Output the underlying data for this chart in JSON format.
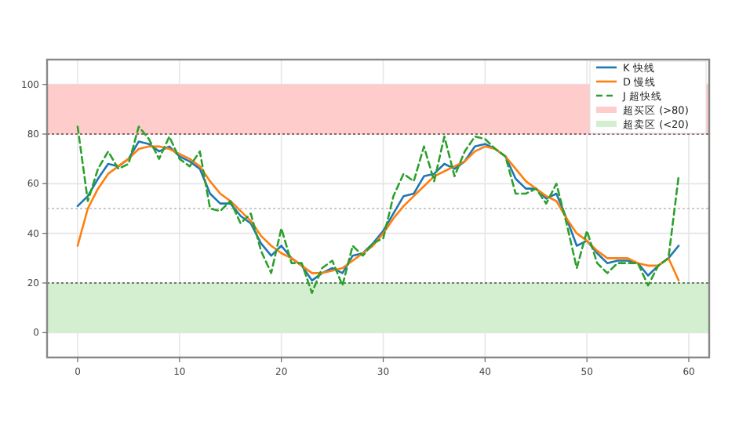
{
  "chart_data": {
    "type": "line",
    "x": [
      0,
      1,
      2,
      3,
      4,
      5,
      6,
      7,
      8,
      9,
      10,
      11,
      12,
      13,
      14,
      15,
      16,
      17,
      18,
      19,
      20,
      21,
      22,
      23,
      24,
      25,
      26,
      27,
      28,
      29,
      30,
      31,
      32,
      33,
      34,
      35,
      36,
      37,
      38,
      39,
      40,
      41,
      42,
      43,
      44,
      45,
      46,
      47,
      48,
      49,
      50,
      51,
      52,
      53,
      54,
      55,
      56,
      57,
      58,
      59
    ],
    "series": [
      {
        "name": "K 快线",
        "color": "#1f77b4",
        "line_style": "solid",
        "values": [
          51,
          55,
          62,
          68,
          67,
          70,
          77,
          76,
          73,
          75,
          71,
          69,
          66,
          56,
          52,
          52,
          47,
          44,
          36,
          31,
          35,
          30,
          27,
          21,
          24,
          26,
          24,
          31,
          32,
          36,
          41,
          48,
          55,
          56,
          63,
          64,
          68,
          66,
          69,
          75,
          76,
          74,
          71,
          62,
          58,
          58,
          54,
          56,
          46,
          35,
          37,
          32,
          28,
          29,
          29,
          28,
          23,
          27,
          30,
          35
        ]
      },
      {
        "name": "D 慢线",
        "color": "#ff7f0e",
        "line_style": "solid",
        "values": [
          35,
          50,
          58,
          64,
          67,
          70,
          74,
          75,
          75,
          74,
          72,
          70,
          67,
          61,
          56,
          53,
          49,
          45,
          39,
          35,
          32,
          30,
          27,
          24,
          24,
          25,
          26,
          29,
          32,
          35,
          40,
          46,
          51,
          55,
          59,
          63,
          65,
          67,
          69,
          73,
          75,
          74,
          71,
          66,
          61,
          58,
          55,
          53,
          46,
          40,
          37,
          33,
          30,
          30,
          30,
          28,
          27,
          27,
          30,
          21
        ]
      },
      {
        "name": "J 超快线",
        "color": "#2ca02c",
        "line_style": "dashed",
        "values": [
          83,
          53,
          66,
          73,
          66,
          68,
          83,
          78,
          70,
          79,
          70,
          67,
          73,
          50,
          49,
          53,
          44,
          48,
          33,
          24,
          42,
          28,
          28,
          16,
          26,
          29,
          19,
          35,
          31,
          36,
          38,
          55,
          64,
          61,
          75,
          61,
          79,
          63,
          73,
          79,
          78,
          74,
          71,
          56,
          56,
          58,
          52,
          60,
          44,
          26,
          41,
          28,
          24,
          28,
          28,
          28,
          19,
          27,
          30,
          63
        ]
      }
    ],
    "bands": [
      {
        "axis": "y",
        "from": 80,
        "to": 100,
        "label": "超买区 (>80)",
        "color": "#ffcccc"
      },
      {
        "axis": "y",
        "from": 0,
        "to": 20,
        "label": "超卖区 (<20)",
        "color": "#d3efcf"
      }
    ],
    "ref_lines": [
      {
        "axis": "y",
        "value": 80,
        "color": "#6b4040",
        "line_style": "dotted"
      },
      {
        "axis": "y",
        "value": 20,
        "color": "#3f5f3f",
        "line_style": "dotted"
      },
      {
        "axis": "y",
        "value": 50,
        "color": "#bbbbbb",
        "line_style": "dotted"
      }
    ],
    "xlim": [
      -3,
      62
    ],
    "xticks": [
      0,
      10,
      20,
      30,
      40,
      50,
      60
    ],
    "ylim": [
      -10,
      110
    ],
    "yticks": [
      0,
      20,
      40,
      60,
      80,
      100
    ],
    "grid": true,
    "legend": "top right"
  }
}
